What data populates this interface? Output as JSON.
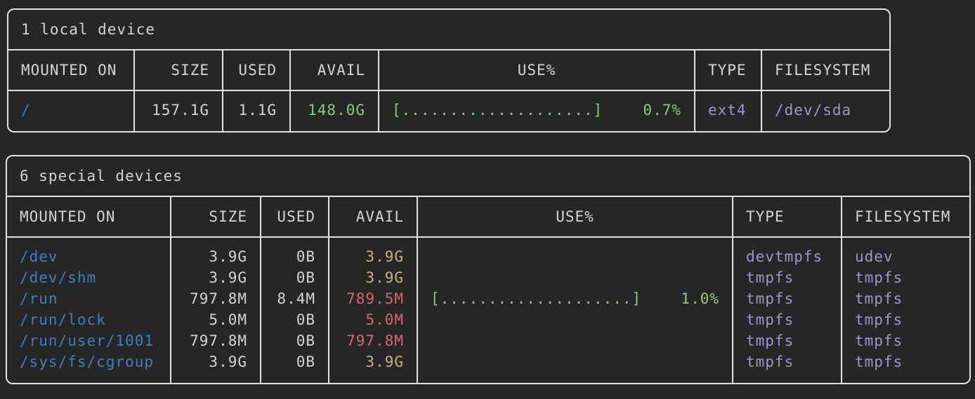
{
  "colors": {
    "background": "#262626",
    "border": "#e2e2e2",
    "text": "#d4d4d4",
    "mount_blue": "#3e7fc1",
    "avail_green": "#8fc87e",
    "avail_yellow": "#cdaf7e",
    "avail_red": "#d2676f",
    "type_purple": "#9d96cc"
  },
  "tables": [
    {
      "title": "1 local device",
      "columns": [
        "MOUNTED ON",
        "SIZE",
        "USED",
        "AVAIL",
        "USE%",
        "TYPE",
        "FILESYSTEM"
      ],
      "rows": [
        {
          "mounted_on": "/",
          "size": "157.1G",
          "used": "1.1G",
          "avail": "148.0G",
          "avail_color": "green",
          "use_bar": "[....................]",
          "use_pct": "0.7%",
          "type": "ext4",
          "filesystem": "/dev/sda"
        }
      ]
    },
    {
      "title": "6 special devices",
      "columns": [
        "MOUNTED ON",
        "SIZE",
        "USED",
        "AVAIL",
        "USE%",
        "TYPE",
        "FILESYSTEM"
      ],
      "rows": [
        {
          "mounted_on": "/dev",
          "size": "3.9G",
          "used": "0B",
          "avail": "3.9G",
          "avail_color": "yellow",
          "use_bar": "",
          "use_pct": "",
          "type": "devtmpfs",
          "filesystem": "udev"
        },
        {
          "mounted_on": "/dev/shm",
          "size": "3.9G",
          "used": "0B",
          "avail": "3.9G",
          "avail_color": "yellow",
          "use_bar": "",
          "use_pct": "",
          "type": "tmpfs",
          "filesystem": "tmpfs"
        },
        {
          "mounted_on": "/run",
          "size": "797.8M",
          "used": "8.4M",
          "avail": "789.5M",
          "avail_color": "red",
          "use_bar": "[....................]",
          "use_pct": "1.0%",
          "type": "tmpfs",
          "filesystem": "tmpfs"
        },
        {
          "mounted_on": "/run/lock",
          "size": "5.0M",
          "used": "0B",
          "avail": "5.0M",
          "avail_color": "red",
          "use_bar": "",
          "use_pct": "",
          "type": "tmpfs",
          "filesystem": "tmpfs"
        },
        {
          "mounted_on": "/run/user/1001",
          "size": "797.8M",
          "used": "0B",
          "avail": "797.8M",
          "avail_color": "red",
          "use_bar": "",
          "use_pct": "",
          "type": "tmpfs",
          "filesystem": "tmpfs"
        },
        {
          "mounted_on": "/sys/fs/cgroup",
          "size": "3.9G",
          "used": "0B",
          "avail": "3.9G",
          "avail_color": "yellow",
          "use_bar": "",
          "use_pct": "",
          "type": "tmpfs",
          "filesystem": "tmpfs"
        }
      ]
    }
  ]
}
